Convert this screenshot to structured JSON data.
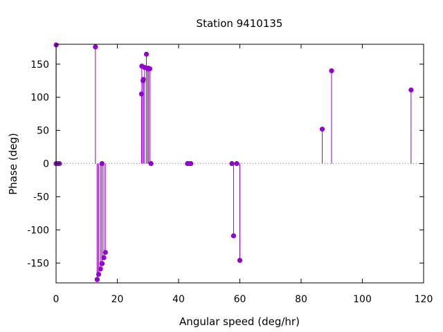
{
  "chart_data": {
    "type": "scatter",
    "style": "impulses-with-points",
    "title": "Station 9410135",
    "xlabel": "Angular speed (deg/hr)",
    "ylabel": "Phase (deg)",
    "xlim": [
      0,
      120
    ],
    "ylim": [
      -180,
      180
    ],
    "xticks": [
      0,
      20,
      40,
      60,
      80,
      100,
      120
    ],
    "yticks": [
      -150,
      -100,
      -50,
      0,
      50,
      100,
      150
    ],
    "xtick_labels": [
      "0",
      "20",
      "40",
      "60",
      "80",
      "100",
      "120"
    ],
    "ytick_labels": [
      "-150",
      "-100",
      "-50",
      "0",
      "50",
      "100",
      "150"
    ],
    "zero_line": "dotted",
    "grid": false,
    "legend": "none",
    "color": "#9400d3",
    "series": [
      {
        "points": [
          [
            0.0,
            0
          ],
          [
            0.04,
            179
          ],
          [
            0.5,
            0
          ],
          [
            1.0,
            0
          ],
          [
            1.1,
            0
          ],
          [
            12.85,
            176
          ],
          [
            13.4,
            -175
          ],
          [
            13.45,
            -175
          ],
          [
            13.9,
            -167
          ],
          [
            14.5,
            -159
          ],
          [
            14.96,
            -151
          ],
          [
            15.0,
            0
          ],
          [
            15.04,
            -151
          ],
          [
            15.6,
            -142
          ],
          [
            16.1,
            -134
          ],
          [
            27.9,
            105
          ],
          [
            28.0,
            147
          ],
          [
            28.4,
            125
          ],
          [
            28.5,
            127
          ],
          [
            28.9,
            145
          ],
          [
            29.5,
            165
          ],
          [
            29.95,
            143
          ],
          [
            30.1,
            144
          ],
          [
            30.6,
            143
          ],
          [
            31.0,
            0
          ],
          [
            42.9,
            0
          ],
          [
            43.5,
            0
          ],
          [
            44.0,
            0
          ],
          [
            57.4,
            0
          ],
          [
            57.95,
            -109
          ],
          [
            58.98,
            0
          ],
          [
            60.0,
            -146
          ],
          [
            86.9,
            52
          ],
          [
            89.95,
            140
          ],
          [
            115.9,
            111
          ]
        ]
      }
    ]
  }
}
